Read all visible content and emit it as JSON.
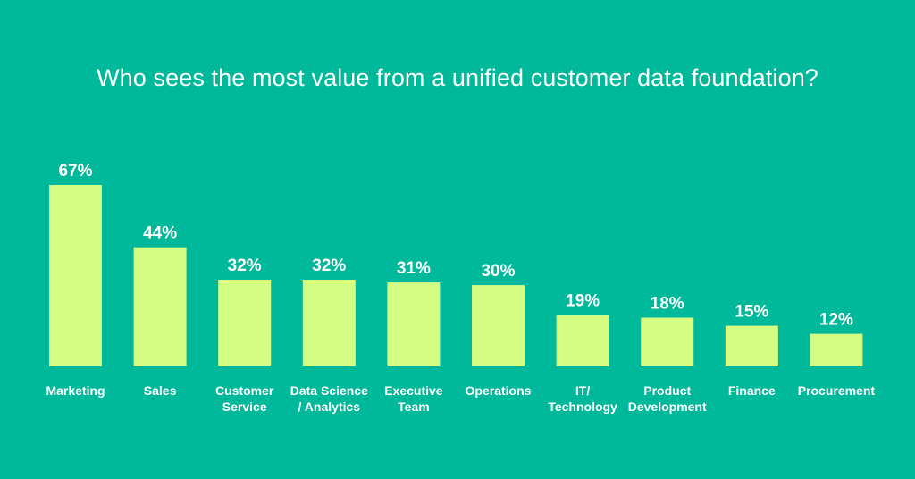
{
  "chart_data": {
    "type": "bar",
    "title": "Who sees the most value from a unified customer data foundation?",
    "xlabel": "",
    "ylabel": "",
    "ylim": [
      0,
      67
    ],
    "grid": false,
    "value_suffix": "%",
    "categories": [
      [
        "Marketing"
      ],
      [
        "Sales"
      ],
      [
        "Customer",
        "Service"
      ],
      [
        "Data Science",
        "/ Analytics"
      ],
      [
        "Executive",
        "Team"
      ],
      [
        "Operations"
      ],
      [
        "IT/",
        "Technology"
      ],
      [
        "Product",
        "Development"
      ],
      [
        "Finance"
      ],
      [
        "Procurement"
      ]
    ],
    "values": [
      67,
      44,
      32,
      32,
      31,
      30,
      19,
      18,
      15,
      12
    ]
  },
  "colors": {
    "background": "#00b89a",
    "bar": "#d4fd84",
    "text": "#ffffff"
  }
}
